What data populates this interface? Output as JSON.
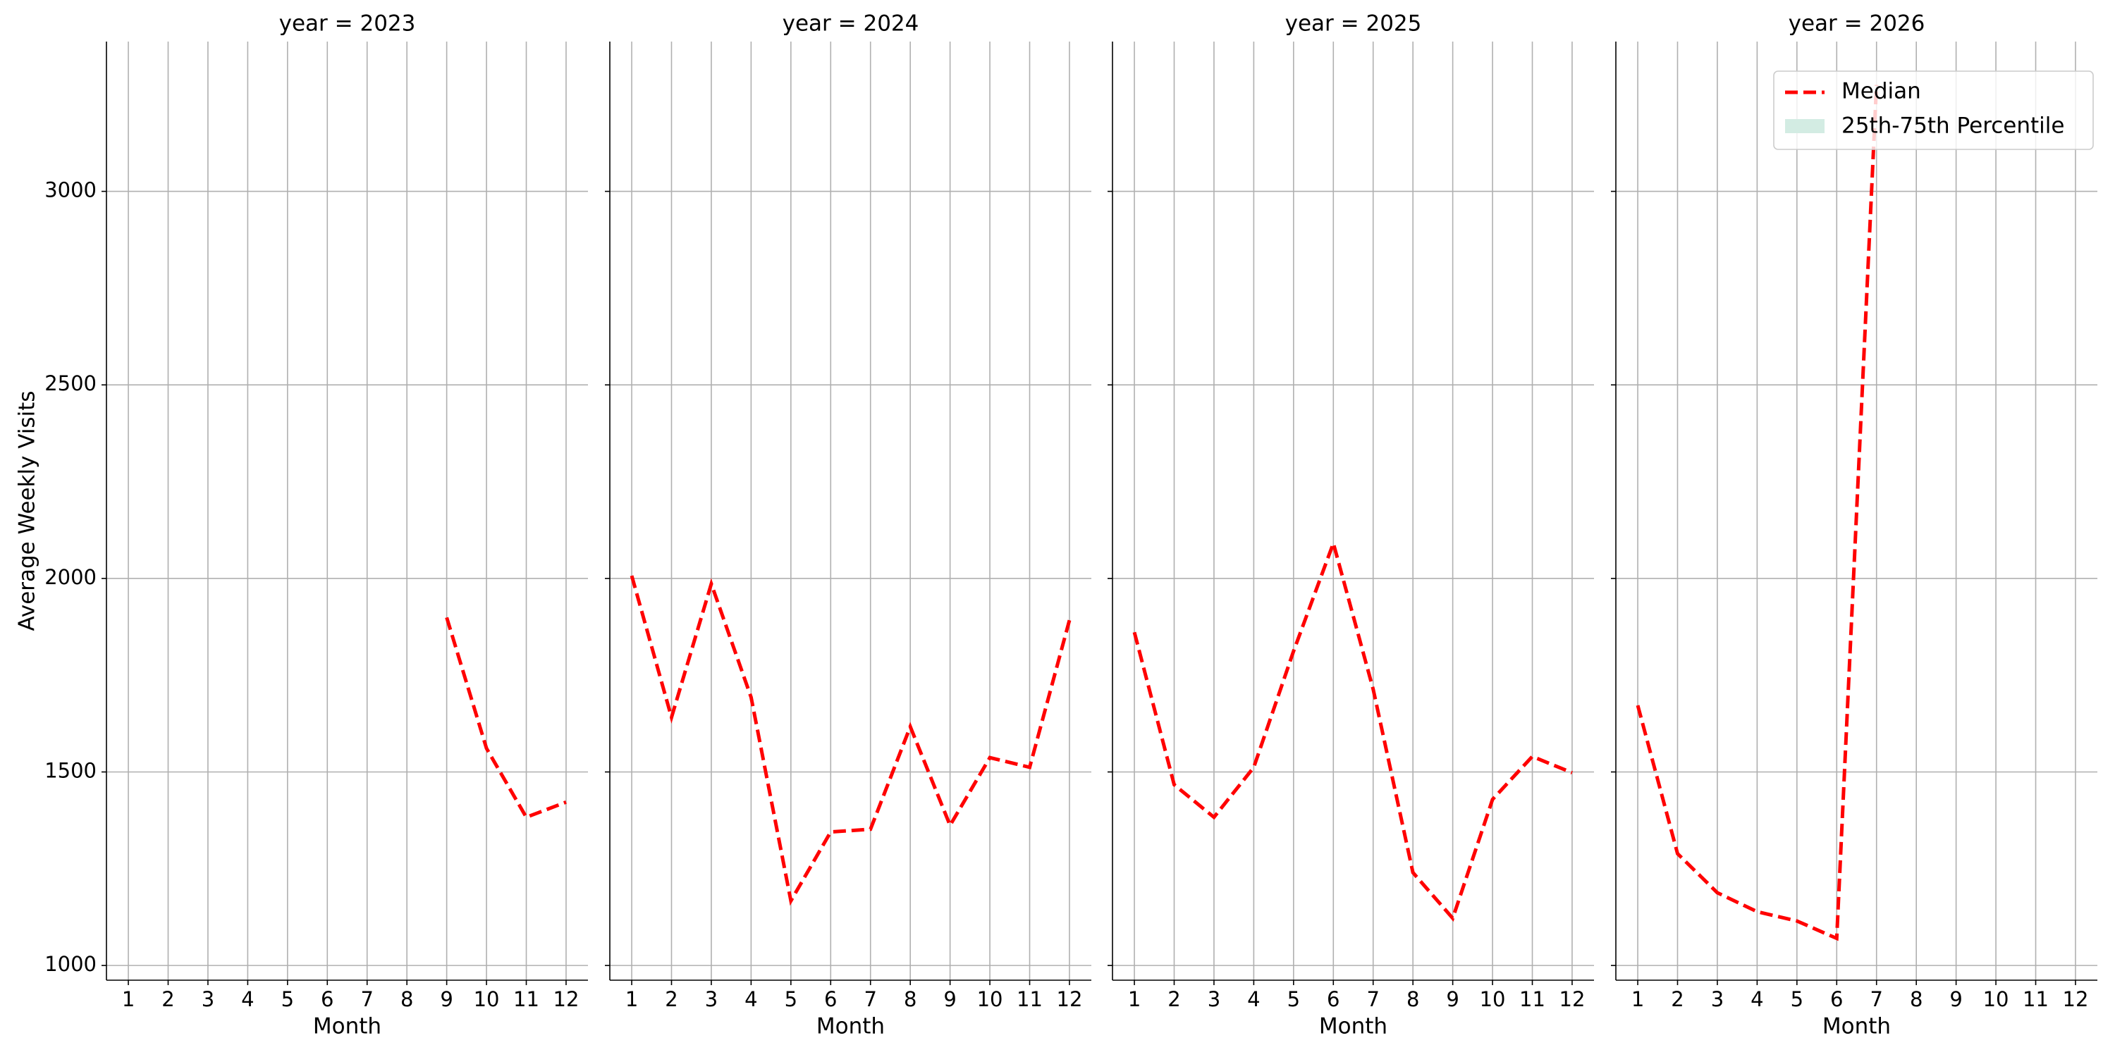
{
  "chart_data": {
    "type": "line",
    "y_label": "Average Weekly Visits",
    "x_label": "Month",
    "x": [
      1,
      2,
      3,
      4,
      5,
      6,
      7,
      8,
      9,
      10,
      11,
      12
    ],
    "xlim": [
      0.45,
      12.55
    ],
    "ylim": [
      962,
      3387
    ],
    "yticks": [
      1000,
      1500,
      2000,
      2500,
      3000
    ],
    "grid": true,
    "legend": "upper right",
    "series": [
      {
        "name": "Median",
        "color": "#ff0000"
      },
      {
        "name": "25th-75th Percentile",
        "color": "#d3ece3"
      }
    ],
    "panels": [
      {
        "title": "year = 2023",
        "values": [
          null,
          null,
          null,
          null,
          null,
          null,
          null,
          null,
          1899,
          1561,
          1383,
          1422
        ]
      },
      {
        "title": "year = 2024",
        "values": [
          2007,
          1641,
          1986,
          1693,
          1167,
          1345,
          1352,
          1617,
          1362,
          1537,
          1512,
          1892
        ]
      },
      {
        "title": "year = 2025",
        "values": [
          1861,
          1467,
          1383,
          1512,
          1812,
          2091,
          1714,
          1240,
          1122,
          1429,
          1540,
          1498
        ]
      },
      {
        "title": "year = 2026",
        "values": [
          1672,
          1289,
          1188,
          1139,
          1115,
          1070,
          3275,
          null,
          null,
          null,
          null,
          null
        ]
      }
    ]
  }
}
